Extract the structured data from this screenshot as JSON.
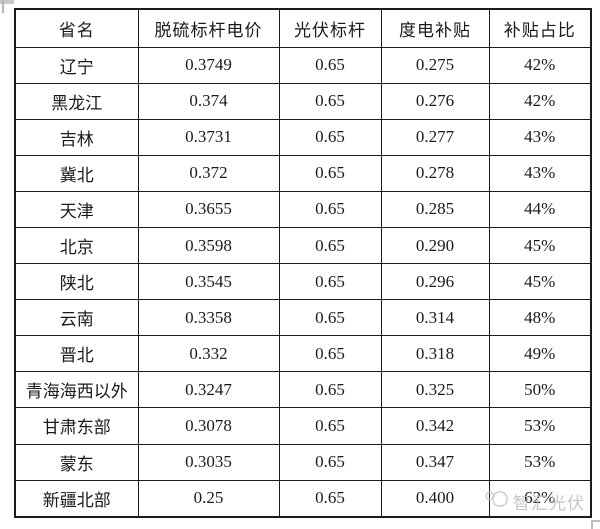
{
  "table": {
    "headers": [
      "省名",
      "脱硫标杆电价",
      "光伏标杆",
      "度电补贴",
      "补贴占比"
    ],
    "rows": [
      [
        "辽宁",
        "0.3749",
        "0.65",
        "0.275",
        "42%"
      ],
      [
        "黑龙江",
        "0.374",
        "0.65",
        "0.276",
        "42%"
      ],
      [
        "吉林",
        "0.3731",
        "0.65",
        "0.277",
        "43%"
      ],
      [
        "冀北",
        "0.372",
        "0.65",
        "0.278",
        "43%"
      ],
      [
        "天津",
        "0.3655",
        "0.65",
        "0.285",
        "44%"
      ],
      [
        "北京",
        "0.3598",
        "0.65",
        "0.290",
        "45%"
      ],
      [
        "陕北",
        "0.3545",
        "0.65",
        "0.296",
        "45%"
      ],
      [
        "云南",
        "0.3358",
        "0.65",
        "0.314",
        "48%"
      ],
      [
        "晋北",
        "0.332",
        "0.65",
        "0.318",
        "49%"
      ],
      [
        "青海海西以外",
        "0.3247",
        "0.65",
        "0.325",
        "50%"
      ],
      [
        "甘肃东部",
        "0.3078",
        "0.65",
        "0.342",
        "53%"
      ],
      [
        "蒙东",
        "0.3035",
        "0.65",
        "0.347",
        "53%"
      ],
      [
        "新疆北部",
        "0.25",
        "0.65",
        "0.400",
        "62%"
      ]
    ]
  },
  "watermark": {
    "text": "智汇光伏"
  },
  "colors": {
    "border": "#1c1c1c",
    "text": "#1a1a1a",
    "watermark": "#bfbfbf",
    "background": "#ffffff"
  }
}
